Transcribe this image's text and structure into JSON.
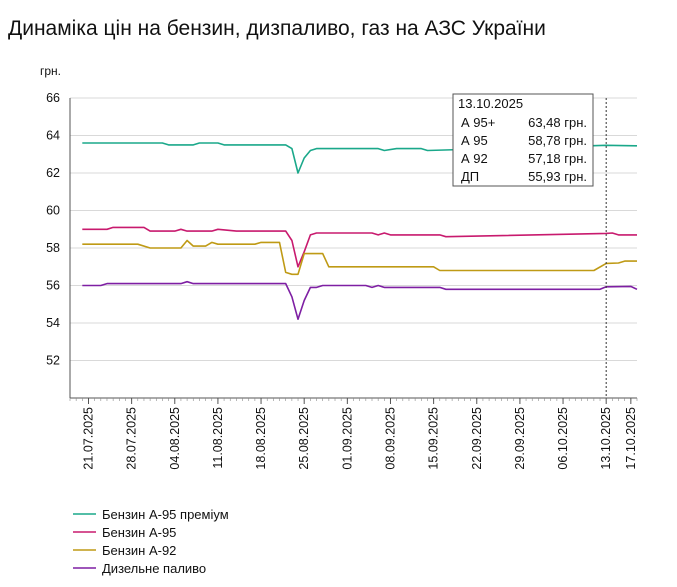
{
  "page": {
    "title": "Динаміка цін на бензин, дизпаливо, газ на АЗС України"
  },
  "chart_data": {
    "type": "line",
    "title": "Динаміка цін на бензин, дизпаливо, газ на АЗС України",
    "ylabel": "грн.",
    "xlabel": "",
    "ylim": [
      50,
      66
    ],
    "yticks": [
      52,
      54,
      56,
      58,
      60,
      62,
      64,
      66
    ],
    "grid": "horizontal",
    "legend_position": "bottom-left",
    "x_range": [
      "2025-07-18",
      "2025-10-18"
    ],
    "x_ticks": [
      {
        "date": "2025-07-21",
        "label": "21.07.2025"
      },
      {
        "date": "2025-07-28",
        "label": "28.07.2025"
      },
      {
        "date": "2025-08-04",
        "label": "04.08.2025"
      },
      {
        "date": "2025-08-11",
        "label": "11.08.2025"
      },
      {
        "date": "2025-08-18",
        "label": "18.08.2025"
      },
      {
        "date": "2025-08-25",
        "label": "25.08.2025"
      },
      {
        "date": "2025-09-01",
        "label": "01.09.2025"
      },
      {
        "date": "2025-09-08",
        "label": "08.09.2025"
      },
      {
        "date": "2025-09-15",
        "label": "15.09.2025"
      },
      {
        "date": "2025-09-22",
        "label": "22.09.2025"
      },
      {
        "date": "2025-09-29",
        "label": "29.09.2025"
      },
      {
        "date": "2025-10-06",
        "label": "06.10.2025"
      },
      {
        "date": "2025-10-13",
        "label": "13.10.2025"
      },
      {
        "date": "2025-10-17",
        "label": "17.10.2025"
      }
    ],
    "series": [
      {
        "name": "Бензин А-95 преміум",
        "color": "#1aa88a",
        "points": [
          [
            "2025-07-20",
            63.6
          ],
          [
            "2025-08-02",
            63.6
          ],
          [
            "2025-08-03",
            63.5
          ],
          [
            "2025-08-07",
            63.5
          ],
          [
            "2025-08-08",
            63.6
          ],
          [
            "2025-08-11",
            63.6
          ],
          [
            "2025-08-12",
            63.5
          ],
          [
            "2025-08-22",
            63.5
          ],
          [
            "2025-08-23",
            63.3
          ],
          [
            "2025-08-24",
            62.0
          ],
          [
            "2025-08-25",
            62.8
          ],
          [
            "2025-08-26",
            63.2
          ],
          [
            "2025-08-27",
            63.3
          ],
          [
            "2025-09-06",
            63.3
          ],
          [
            "2025-09-07",
            63.2
          ],
          [
            "2025-09-09",
            63.3
          ],
          [
            "2025-09-10",
            63.3
          ],
          [
            "2025-09-13",
            63.3
          ],
          [
            "2025-09-14",
            63.2
          ],
          [
            "2025-10-13",
            63.48
          ],
          [
            "2025-10-18",
            63.45
          ]
        ]
      },
      {
        "name": "Бензин А-95",
        "color": "#c81a6e",
        "points": [
          [
            "2025-07-20",
            59.0
          ],
          [
            "2025-07-24",
            59.0
          ],
          [
            "2025-07-25",
            59.1
          ],
          [
            "2025-07-30",
            59.1
          ],
          [
            "2025-07-31",
            58.9
          ],
          [
            "2025-08-04",
            58.9
          ],
          [
            "2025-08-05",
            59.0
          ],
          [
            "2025-08-06",
            58.9
          ],
          [
            "2025-08-10",
            58.9
          ],
          [
            "2025-08-11",
            59.0
          ],
          [
            "2025-08-14",
            58.9
          ],
          [
            "2025-08-22",
            58.9
          ],
          [
            "2025-08-23",
            58.4
          ],
          [
            "2025-08-24",
            57.0
          ],
          [
            "2025-08-25",
            57.8
          ],
          [
            "2025-08-26",
            58.7
          ],
          [
            "2025-08-27",
            58.8
          ],
          [
            "2025-09-05",
            58.8
          ],
          [
            "2025-09-06",
            58.7
          ],
          [
            "2025-09-07",
            58.8
          ],
          [
            "2025-09-08",
            58.7
          ],
          [
            "2025-09-16",
            58.7
          ],
          [
            "2025-09-17",
            58.6
          ],
          [
            "2025-10-13",
            58.78
          ],
          [
            "2025-10-14",
            58.8
          ],
          [
            "2025-10-15",
            58.7
          ],
          [
            "2025-10-18",
            58.7
          ]
        ]
      },
      {
        "name": "Бензин А-92",
        "color": "#bf9a15",
        "points": [
          [
            "2025-07-20",
            58.2
          ],
          [
            "2025-07-29",
            58.2
          ],
          [
            "2025-07-31",
            58.0
          ],
          [
            "2025-08-05",
            58.0
          ],
          [
            "2025-08-06",
            58.4
          ],
          [
            "2025-08-07",
            58.1
          ],
          [
            "2025-08-09",
            58.1
          ],
          [
            "2025-08-10",
            58.3
          ],
          [
            "2025-08-11",
            58.2
          ],
          [
            "2025-08-17",
            58.2
          ],
          [
            "2025-08-18",
            58.3
          ],
          [
            "2025-08-21",
            58.3
          ],
          [
            "2025-08-22",
            56.7
          ],
          [
            "2025-08-23",
            56.6
          ],
          [
            "2025-08-24",
            56.6
          ],
          [
            "2025-08-25",
            57.7
          ],
          [
            "2025-08-28",
            57.7
          ],
          [
            "2025-08-29",
            57.0
          ],
          [
            "2025-09-15",
            57.0
          ],
          [
            "2025-09-16",
            56.8
          ],
          [
            "2025-10-11",
            56.8
          ],
          [
            "2025-10-13",
            57.18
          ],
          [
            "2025-10-15",
            57.2
          ],
          [
            "2025-10-16",
            57.3
          ],
          [
            "2025-10-18",
            57.3
          ]
        ]
      },
      {
        "name": "Дизельне паливо",
        "color": "#7e1fa3",
        "points": [
          [
            "2025-07-20",
            56.0
          ],
          [
            "2025-07-23",
            56.0
          ],
          [
            "2025-07-24",
            56.1
          ],
          [
            "2025-08-05",
            56.1
          ],
          [
            "2025-08-06",
            56.2
          ],
          [
            "2025-08-07",
            56.1
          ],
          [
            "2025-08-22",
            56.1
          ],
          [
            "2025-08-23",
            55.4
          ],
          [
            "2025-08-24",
            54.2
          ],
          [
            "2025-08-25",
            55.2
          ],
          [
            "2025-08-26",
            55.9
          ],
          [
            "2025-08-27",
            55.9
          ],
          [
            "2025-08-28",
            56.0
          ],
          [
            "2025-09-04",
            56.0
          ],
          [
            "2025-09-05",
            55.9
          ],
          [
            "2025-09-06",
            56.0
          ],
          [
            "2025-09-07",
            55.9
          ],
          [
            "2025-09-16",
            55.9
          ],
          [
            "2025-09-17",
            55.8
          ],
          [
            "2025-10-12",
            55.8
          ],
          [
            "2025-10-13",
            55.93
          ],
          [
            "2025-10-17",
            55.95
          ],
          [
            "2025-10-18",
            55.8
          ]
        ]
      }
    ],
    "cursor_date": "2025-10-13",
    "tooltip": {
      "date": "13.10.2025",
      "rows": [
        {
          "label": "А 95+",
          "value": "63,48 грн."
        },
        {
          "label": "А 95",
          "value": "58,78 грн."
        },
        {
          "label": "А 92",
          "value": "57,18 грн."
        },
        {
          "label": "ДП",
          "value": "55,93 грн."
        }
      ]
    }
  }
}
